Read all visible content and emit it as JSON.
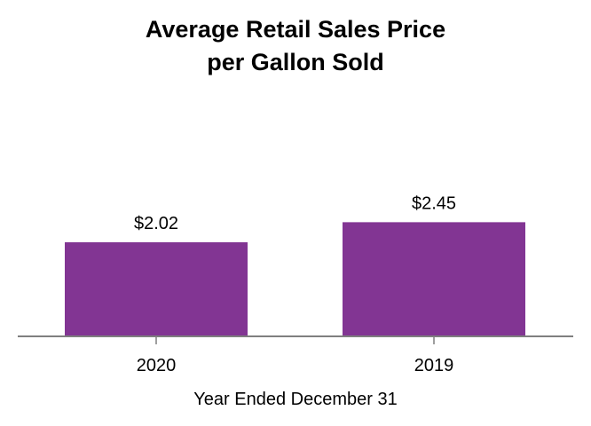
{
  "chart_data": {
    "type": "bar",
    "title_lines": [
      "Average Retail Sales Price",
      "per Gallon Sold"
    ],
    "categories": [
      "2020",
      "2019"
    ],
    "values": [
      2.02,
      2.45
    ],
    "value_labels": [
      "$2.02",
      "$2.45"
    ],
    "xlabel": "Year Ended December 31",
    "ylabel": "",
    "ylim": [
      0,
      3.0
    ],
    "grid": false,
    "legend": "none",
    "colors": {
      "bar": "#823593",
      "axis": "#7f7f7f",
      "text": "#000000"
    }
  }
}
